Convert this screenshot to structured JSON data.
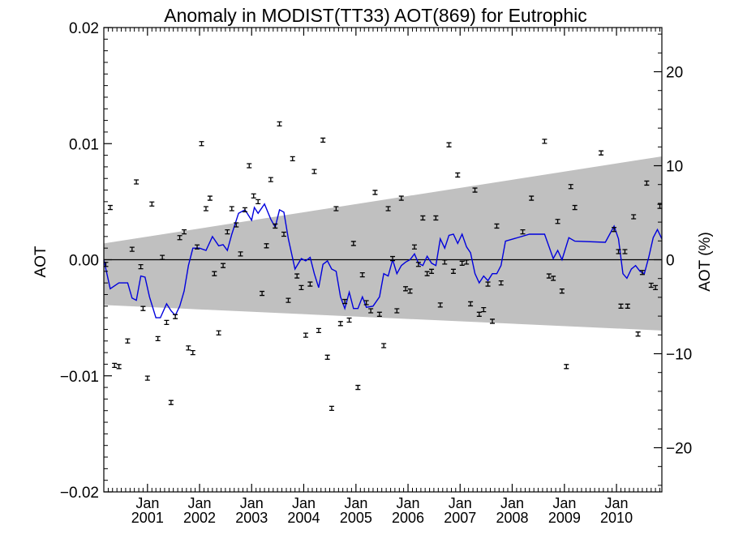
{
  "chart_data": {
    "type": "scatter",
    "title": "Anomaly in MODIST(TT33) AOT(869) for Eutrophic",
    "ylabel": "AOT",
    "y2label": "AOT (%)",
    "ylim": [
      -0.02,
      0.02
    ],
    "y2lim": [
      -24.7,
      24.7
    ],
    "xlim": [
      "2000-03-01",
      "2010-11-15"
    ],
    "yticks": [
      {
        "value": -0.02,
        "label": "−0.02"
      },
      {
        "value": -0.01,
        "label": "−0.01"
      },
      {
        "value": 0.0,
        "label": "0.00"
      },
      {
        "value": 0.01,
        "label": "0.01"
      },
      {
        "value": 0.02,
        "label": "0.02"
      }
    ],
    "y2ticks": [
      {
        "value": -20,
        "label": "−20"
      },
      {
        "value": -10,
        "label": "−10"
      },
      {
        "value": 0,
        "label": "0"
      },
      {
        "value": 10,
        "label": "10"
      },
      {
        "value": 20,
        "label": "20"
      }
    ],
    "xticks": [
      {
        "date": "2001-01-01",
        "month": "Jan",
        "year": "2001"
      },
      {
        "date": "2002-01-01",
        "month": "Jan",
        "year": "2002"
      },
      {
        "date": "2003-01-01",
        "month": "Jan",
        "year": "2003"
      },
      {
        "date": "2004-01-01",
        "month": "Jan",
        "year": "2004"
      },
      {
        "date": "2005-01-01",
        "month": "Jan",
        "year": "2005"
      },
      {
        "date": "2006-01-01",
        "month": "Jan",
        "year": "2006"
      },
      {
        "date": "2007-01-01",
        "month": "Jan",
        "year": "2007"
      },
      {
        "date": "2008-01-01",
        "month": "Jan",
        "year": "2008"
      },
      {
        "date": "2009-01-01",
        "month": "Jan",
        "year": "2009"
      },
      {
        "date": "2010-01-01",
        "month": "Jan",
        "year": "2010"
      }
    ],
    "band": {
      "color": "#c0c0c0",
      "upper": [
        {
          "date": "2000-03-01",
          "y": 0.0014
        },
        {
          "date": "2010-11-15",
          "y": 0.0089
        }
      ],
      "lower": [
        {
          "date": "2000-03-01",
          "y": -0.0039
        },
        {
          "date": "2010-11-15",
          "y": -0.0061
        }
      ]
    },
    "zero_line": 0.0,
    "points": [
      {
        "date": "2000-03-15",
        "y": -0.0004
      },
      {
        "date": "2000-04-15",
        "y": 0.0045
      },
      {
        "date": "2000-05-15",
        "y": -0.0091
      },
      {
        "date": "2000-06-15",
        "y": -0.0092
      },
      {
        "date": "2000-08-15",
        "y": -0.007
      },
      {
        "date": "2000-09-15",
        "y": 0.0009
      },
      {
        "date": "2000-10-15",
        "y": 0.0067
      },
      {
        "date": "2000-11-15",
        "y": -0.0006
      },
      {
        "date": "2000-12-01",
        "y": -0.0042
      },
      {
        "date": "2001-01-01",
        "y": -0.0102
      },
      {
        "date": "2001-02-01",
        "y": 0.0048
      },
      {
        "date": "2001-03-15",
        "y": -0.0068
      },
      {
        "date": "2001-04-15",
        "y": 0.0002
      },
      {
        "date": "2001-05-15",
        "y": -0.0054
      },
      {
        "date": "2001-06-15",
        "y": -0.0123
      },
      {
        "date": "2001-07-15",
        "y": -0.0049
      },
      {
        "date": "2001-08-15",
        "y": 0.0019
      },
      {
        "date": "2001-09-15",
        "y": 0.0024
      },
      {
        "date": "2001-10-15",
        "y": -0.0076
      },
      {
        "date": "2001-11-15",
        "y": -0.008
      },
      {
        "date": "2001-12-15",
        "y": 0.0011
      },
      {
        "date": "2002-01-15",
        "y": 0.01
      },
      {
        "date": "2002-02-15",
        "y": 0.0044
      },
      {
        "date": "2002-03-15",
        "y": 0.0053
      },
      {
        "date": "2002-04-15",
        "y": -0.0012
      },
      {
        "date": "2002-05-15",
        "y": -0.0063
      },
      {
        "date": "2002-06-15",
        "y": -0.0005
      },
      {
        "date": "2002-07-15",
        "y": 0.0024
      },
      {
        "date": "2002-08-15",
        "y": 0.0044
      },
      {
        "date": "2002-09-15",
        "y": 0.003
      },
      {
        "date": "2002-10-15",
        "y": 0.0005
      },
      {
        "date": "2002-11-15",
        "y": 0.0043
      },
      {
        "date": "2002-12-15",
        "y": 0.0081
      },
      {
        "date": "2003-01-15",
        "y": 0.0055
      },
      {
        "date": "2003-02-15",
        "y": 0.005
      },
      {
        "date": "2003-03-15",
        "y": -0.0029
      },
      {
        "date": "2003-04-15",
        "y": 0.0012
      },
      {
        "date": "2003-05-15",
        "y": 0.0069
      },
      {
        "date": "2003-06-15",
        "y": 0.0029
      },
      {
        "date": "2003-07-15",
        "y": 0.0117
      },
      {
        "date": "2003-08-15",
        "y": 0.0022
      },
      {
        "date": "2003-09-15",
        "y": -0.0035
      },
      {
        "date": "2003-10-15",
        "y": 0.0087
      },
      {
        "date": "2003-11-15",
        "y": -0.0014
      },
      {
        "date": "2003-12-15",
        "y": -0.0024
      },
      {
        "date": "2004-01-15",
        "y": -0.0065
      },
      {
        "date": "2004-02-15",
        "y": -0.0021
      },
      {
        "date": "2004-03-15",
        "y": 0.0076
      },
      {
        "date": "2004-04-15",
        "y": -0.0061
      },
      {
        "date": "2004-05-15",
        "y": 0.0103
      },
      {
        "date": "2004-06-15",
        "y": -0.0084
      },
      {
        "date": "2004-07-15",
        "y": -0.0128
      },
      {
        "date": "2004-08-15",
        "y": 0.0044
      },
      {
        "date": "2004-09-15",
        "y": -0.0055
      },
      {
        "date": "2004-10-15",
        "y": -0.0036
      },
      {
        "date": "2004-11-15",
        "y": -0.0052
      },
      {
        "date": "2004-12-15",
        "y": 0.0014
      },
      {
        "date": "2005-01-15",
        "y": -0.011
      },
      {
        "date": "2005-02-15",
        "y": -0.0013
      },
      {
        "date": "2005-03-15",
        "y": -0.0037
      },
      {
        "date": "2005-04-15",
        "y": -0.0044
      },
      {
        "date": "2005-05-15",
        "y": 0.0058
      },
      {
        "date": "2005-06-15",
        "y": -0.0047
      },
      {
        "date": "2005-07-15",
        "y": -0.0074
      },
      {
        "date": "2005-08-15",
        "y": 0.0044
      },
      {
        "date": "2005-09-15",
        "y": 0.0001
      },
      {
        "date": "2005-10-15",
        "y": -0.0044
      },
      {
        "date": "2005-11-15",
        "y": 0.0053
      },
      {
        "date": "2005-12-15",
        "y": -0.0025
      },
      {
        "date": "2006-01-15",
        "y": -0.0027
      },
      {
        "date": "2006-02-15",
        "y": 0.0011
      },
      {
        "date": "2006-03-15",
        "y": -0.0004
      },
      {
        "date": "2006-04-15",
        "y": 0.0036
      },
      {
        "date": "2006-05-15",
        "y": -0.0012
      },
      {
        "date": "2006-06-15",
        "y": -0.001
      },
      {
        "date": "2006-07-15",
        "y": 0.0036
      },
      {
        "date": "2006-08-15",
        "y": -0.0039
      },
      {
        "date": "2006-09-15",
        "y": -0.0002
      },
      {
        "date": "2006-10-15",
        "y": 0.0099
      },
      {
        "date": "2006-11-15",
        "y": -0.001
      },
      {
        "date": "2006-12-15",
        "y": 0.0073
      },
      {
        "date": "2007-01-15",
        "y": -0.0003
      },
      {
        "date": "2007-02-15",
        "y": -0.0002
      },
      {
        "date": "2007-03-15",
        "y": -0.0038
      },
      {
        "date": "2007-04-15",
        "y": 0.006
      },
      {
        "date": "2007-05-15",
        "y": -0.0047
      },
      {
        "date": "2007-06-15",
        "y": -0.0043
      },
      {
        "date": "2007-07-15",
        "y": -0.0021
      },
      {
        "date": "2007-08-15",
        "y": -0.0053
      },
      {
        "date": "2007-09-15",
        "y": 0.0029
      },
      {
        "date": "2007-10-15",
        "y": -0.002
      },
      {
        "date": "2008-03-15",
        "y": 0.0024
      },
      {
        "date": "2008-05-15",
        "y": 0.0053
      },
      {
        "date": "2008-08-15",
        "y": 0.0102
      },
      {
        "date": "2008-09-15",
        "y": -0.0014
      },
      {
        "date": "2008-10-15",
        "y": -0.0016
      },
      {
        "date": "2008-11-15",
        "y": 0.0033
      },
      {
        "date": "2008-12-15",
        "y": -0.0027
      },
      {
        "date": "2009-01-15",
        "y": -0.0092
      },
      {
        "date": "2009-02-15",
        "y": 0.0063
      },
      {
        "date": "2009-03-15",
        "y": 0.0045
      },
      {
        "date": "2009-09-15",
        "y": 0.0092
      },
      {
        "date": "2009-12-15",
        "y": 0.0026
      },
      {
        "date": "2010-01-15",
        "y": 0.0007
      },
      {
        "date": "2010-02-01",
        "y": -0.004
      },
      {
        "date": "2010-03-01",
        "y": 0.0007
      },
      {
        "date": "2010-03-20",
        "y": -0.004
      },
      {
        "date": "2010-05-01",
        "y": 0.0037
      },
      {
        "date": "2010-06-01",
        "y": -0.0064
      },
      {
        "date": "2010-07-01",
        "y": -0.0011
      },
      {
        "date": "2010-08-01",
        "y": 0.0066
      },
      {
        "date": "2010-09-01",
        "y": -0.0022
      },
      {
        "date": "2010-10-01",
        "y": -0.0024
      },
      {
        "date": "2010-11-01",
        "y": 0.0046
      }
    ],
    "running_mean": {
      "color": "#0000dd",
      "points": [
        {
          "date": "2000-03-01",
          "y": 0.0
        },
        {
          "date": "2000-04-15",
          "y": -0.0025
        },
        {
          "date": "2000-06-15",
          "y": -0.002
        },
        {
          "date": "2000-08-15",
          "y": -0.002
        },
        {
          "date": "2000-09-15",
          "y": -0.0033
        },
        {
          "date": "2000-10-15",
          "y": -0.0035
        },
        {
          "date": "2000-11-15",
          "y": -0.0014
        },
        {
          "date": "2000-12-15",
          "y": -0.0015
        },
        {
          "date": "2001-01-15",
          "y": -0.0032
        },
        {
          "date": "2001-03-01",
          "y": -0.005
        },
        {
          "date": "2001-04-01",
          "y": -0.005
        },
        {
          "date": "2001-05-15",
          "y": -0.0038
        },
        {
          "date": "2001-06-15",
          "y": -0.0044
        },
        {
          "date": "2001-07-15",
          "y": -0.0048
        },
        {
          "date": "2001-08-15",
          "y": -0.004
        },
        {
          "date": "2001-09-15",
          "y": -0.0027
        },
        {
          "date": "2001-10-15",
          "y": -0.0005
        },
        {
          "date": "2001-11-15",
          "y": 0.001
        },
        {
          "date": "2002-01-01",
          "y": 0.001
        },
        {
          "date": "2002-02-15",
          "y": 0.0008
        },
        {
          "date": "2002-04-01",
          "y": 0.002
        },
        {
          "date": "2002-05-15",
          "y": 0.0012
        },
        {
          "date": "2002-06-15",
          "y": 0.0013
        },
        {
          "date": "2002-07-15",
          "y": 0.0008
        },
        {
          "date": "2002-08-15",
          "y": 0.0022
        },
        {
          "date": "2002-10-01",
          "y": 0.004
        },
        {
          "date": "2002-11-15",
          "y": 0.0043
        },
        {
          "date": "2003-01-01",
          "y": 0.0034
        },
        {
          "date": "2003-01-20",
          "y": 0.0045
        },
        {
          "date": "2003-02-15",
          "y": 0.004
        },
        {
          "date": "2003-04-01",
          "y": 0.0048
        },
        {
          "date": "2003-05-15",
          "y": 0.0035
        },
        {
          "date": "2003-06-15",
          "y": 0.0028
        },
        {
          "date": "2003-07-15",
          "y": 0.0043
        },
        {
          "date": "2003-08-15",
          "y": 0.0041
        },
        {
          "date": "2003-09-15",
          "y": 0.0018
        },
        {
          "date": "2003-11-01",
          "y": -0.0008
        },
        {
          "date": "2003-12-15",
          "y": 0.0001
        },
        {
          "date": "2004-01-15",
          "y": -0.0001
        },
        {
          "date": "2004-02-15",
          "y": 0.0002
        },
        {
          "date": "2004-03-15",
          "y": -0.0012
        },
        {
          "date": "2004-04-15",
          "y": -0.0024
        },
        {
          "date": "2004-05-15",
          "y": -0.0004
        },
        {
          "date": "2004-06-15",
          "y": -0.0001
        },
        {
          "date": "2004-07-15",
          "y": -0.0008
        },
        {
          "date": "2004-08-15",
          "y": -0.001
        },
        {
          "date": "2004-09-15",
          "y": -0.0032
        },
        {
          "date": "2004-10-15",
          "y": -0.0042
        },
        {
          "date": "2004-11-15",
          "y": -0.0028
        },
        {
          "date": "2004-12-15",
          "y": -0.0042
        },
        {
          "date": "2005-01-15",
          "y": -0.0042
        },
        {
          "date": "2005-02-15",
          "y": -0.0032
        },
        {
          "date": "2005-03-15",
          "y": -0.0041
        },
        {
          "date": "2005-05-01",
          "y": -0.004
        },
        {
          "date": "2005-06-15",
          "y": -0.0032
        },
        {
          "date": "2005-07-15",
          "y": -0.0012
        },
        {
          "date": "2005-08-15",
          "y": -0.0014
        },
        {
          "date": "2005-09-15",
          "y": 0.0
        },
        {
          "date": "2005-10-15",
          "y": -0.0012
        },
        {
          "date": "2005-11-15",
          "y": -0.0005
        },
        {
          "date": "2005-12-15",
          "y": -0.0002
        },
        {
          "date": "2006-01-15",
          "y": 0.0
        },
        {
          "date": "2006-02-15",
          "y": 0.0005
        },
        {
          "date": "2006-03-15",
          "y": -0.0003
        },
        {
          "date": "2006-04-15",
          "y": -0.0005
        },
        {
          "date": "2006-05-15",
          "y": 0.0003
        },
        {
          "date": "2006-06-15",
          "y": -0.0003
        },
        {
          "date": "2006-07-15",
          "y": -0.0005
        },
        {
          "date": "2006-08-15",
          "y": 0.0018
        },
        {
          "date": "2006-09-15",
          "y": 0.001
        },
        {
          "date": "2006-10-15",
          "y": 0.0021
        },
        {
          "date": "2006-11-15",
          "y": 0.0022
        },
        {
          "date": "2006-12-15",
          "y": 0.0014
        },
        {
          "date": "2007-01-15",
          "y": 0.0022
        },
        {
          "date": "2007-02-15",
          "y": 0.0011
        },
        {
          "date": "2007-03-15",
          "y": 0.0006
        },
        {
          "date": "2007-04-15",
          "y": -0.0012
        },
        {
          "date": "2007-05-15",
          "y": -0.002
        },
        {
          "date": "2007-06-15",
          "y": -0.0014
        },
        {
          "date": "2007-07-15",
          "y": -0.0018
        },
        {
          "date": "2007-08-15",
          "y": -0.0012
        },
        {
          "date": "2007-09-15",
          "y": -0.0012
        },
        {
          "date": "2007-10-15",
          "y": -0.0005
        },
        {
          "date": "2007-11-15",
          "y": 0.0016
        },
        {
          "date": "2008-05-01",
          "y": 0.0022
        },
        {
          "date": "2008-08-15",
          "y": 0.0022
        },
        {
          "date": "2008-10-15",
          "y": 0.0001
        },
        {
          "date": "2008-11-15",
          "y": 0.0008
        },
        {
          "date": "2008-12-15",
          "y": 0.0
        },
        {
          "date": "2009-02-01",
          "y": 0.0019
        },
        {
          "date": "2009-03-15",
          "y": 0.0016
        },
        {
          "date": "2009-10-15",
          "y": 0.0015
        },
        {
          "date": "2009-12-15",
          "y": 0.0029
        },
        {
          "date": "2010-01-15",
          "y": 0.0018
        },
        {
          "date": "2010-02-15",
          "y": -0.0012
        },
        {
          "date": "2010-03-15",
          "y": -0.0016
        },
        {
          "date": "2010-04-15",
          "y": -0.0008
        },
        {
          "date": "2010-05-15",
          "y": -0.0005
        },
        {
          "date": "2010-06-15",
          "y": -0.001
        },
        {
          "date": "2010-07-15",
          "y": -0.0012
        },
        {
          "date": "2010-08-15",
          "y": 0.0002
        },
        {
          "date": "2010-09-15",
          "y": 0.0019
        },
        {
          "date": "2010-10-15",
          "y": 0.0026
        },
        {
          "date": "2010-11-15",
          "y": 0.0018
        }
      ]
    },
    "grid": false,
    "legend": "none",
    "colors": {
      "band": "#c0c0c0",
      "line": "#0000dd",
      "points": "#000000",
      "zero": "#000000"
    }
  }
}
